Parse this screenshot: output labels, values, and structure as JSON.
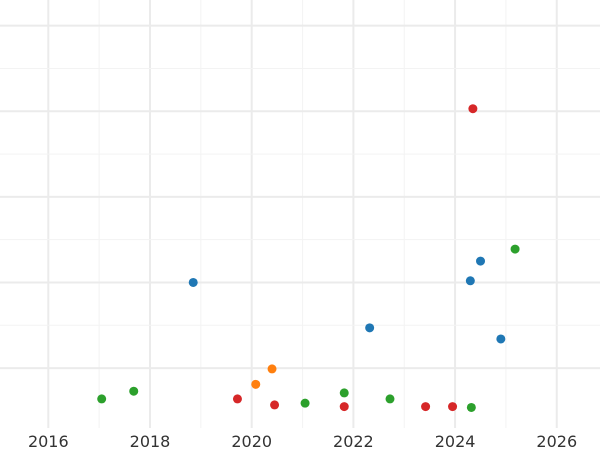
{
  "chart_data": {
    "type": "scatter",
    "title": "",
    "xlabel": "",
    "ylabel": "",
    "grid": true,
    "xlim": [
      2015.05,
      2026.85
    ],
    "ylim": [
      0.3,
      5.3
    ],
    "x_ticks": [
      2016,
      2018,
      2020,
      2022,
      2024,
      2026
    ],
    "x_tick_labels": [
      "2016",
      "2018",
      "2020",
      "2022",
      "2024",
      "2026"
    ],
    "y_gridlines": [
      1,
      2,
      3,
      4,
      5
    ],
    "series": [
      {
        "color": "#1f77b4",
        "points": [
          {
            "x": 2018.85,
            "y": 2.0
          },
          {
            "x": 2022.32,
            "y": 1.47
          },
          {
            "x": 2024.3,
            "y": 2.02
          },
          {
            "x": 2024.5,
            "y": 2.25
          },
          {
            "x": 2024.9,
            "y": 1.34
          }
        ]
      },
      {
        "color": "#ff7f0e",
        "points": [
          {
            "x": 2020.08,
            "y": 0.81
          },
          {
            "x": 2020.4,
            "y": 0.99
          }
        ]
      },
      {
        "color": "#2ca02c",
        "points": [
          {
            "x": 2017.05,
            "y": 0.64
          },
          {
            "x": 2017.68,
            "y": 0.73
          },
          {
            "x": 2021.05,
            "y": 0.59
          },
          {
            "x": 2021.82,
            "y": 0.71
          },
          {
            "x": 2022.72,
            "y": 0.64
          },
          {
            "x": 2024.32,
            "y": 0.54
          },
          {
            "x": 2025.18,
            "y": 2.39
          }
        ]
      },
      {
        "color": "#d62728",
        "points": [
          {
            "x": 2019.72,
            "y": 0.64
          },
          {
            "x": 2020.45,
            "y": 0.57
          },
          {
            "x": 2021.82,
            "y": 0.55
          },
          {
            "x": 2023.42,
            "y": 0.55
          },
          {
            "x": 2023.95,
            "y": 0.55
          },
          {
            "x": 2024.35,
            "y": 4.03
          }
        ]
      }
    ]
  }
}
